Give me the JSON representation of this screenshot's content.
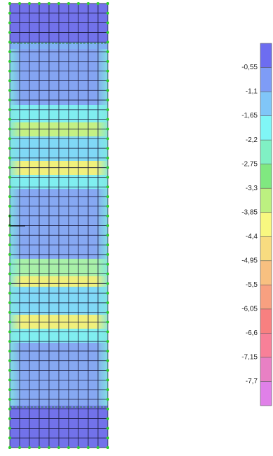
{
  "legend": {
    "labels": [
      "-0,55",
      "-1,1",
      "-1,65",
      "-2,2",
      "-2,75",
      "-3,3",
      "-3,85",
      "-4,4",
      "-4,95",
      "-5,5",
      "-6,05",
      "-6,6",
      "-7,15",
      "-7,7"
    ]
  }
}
